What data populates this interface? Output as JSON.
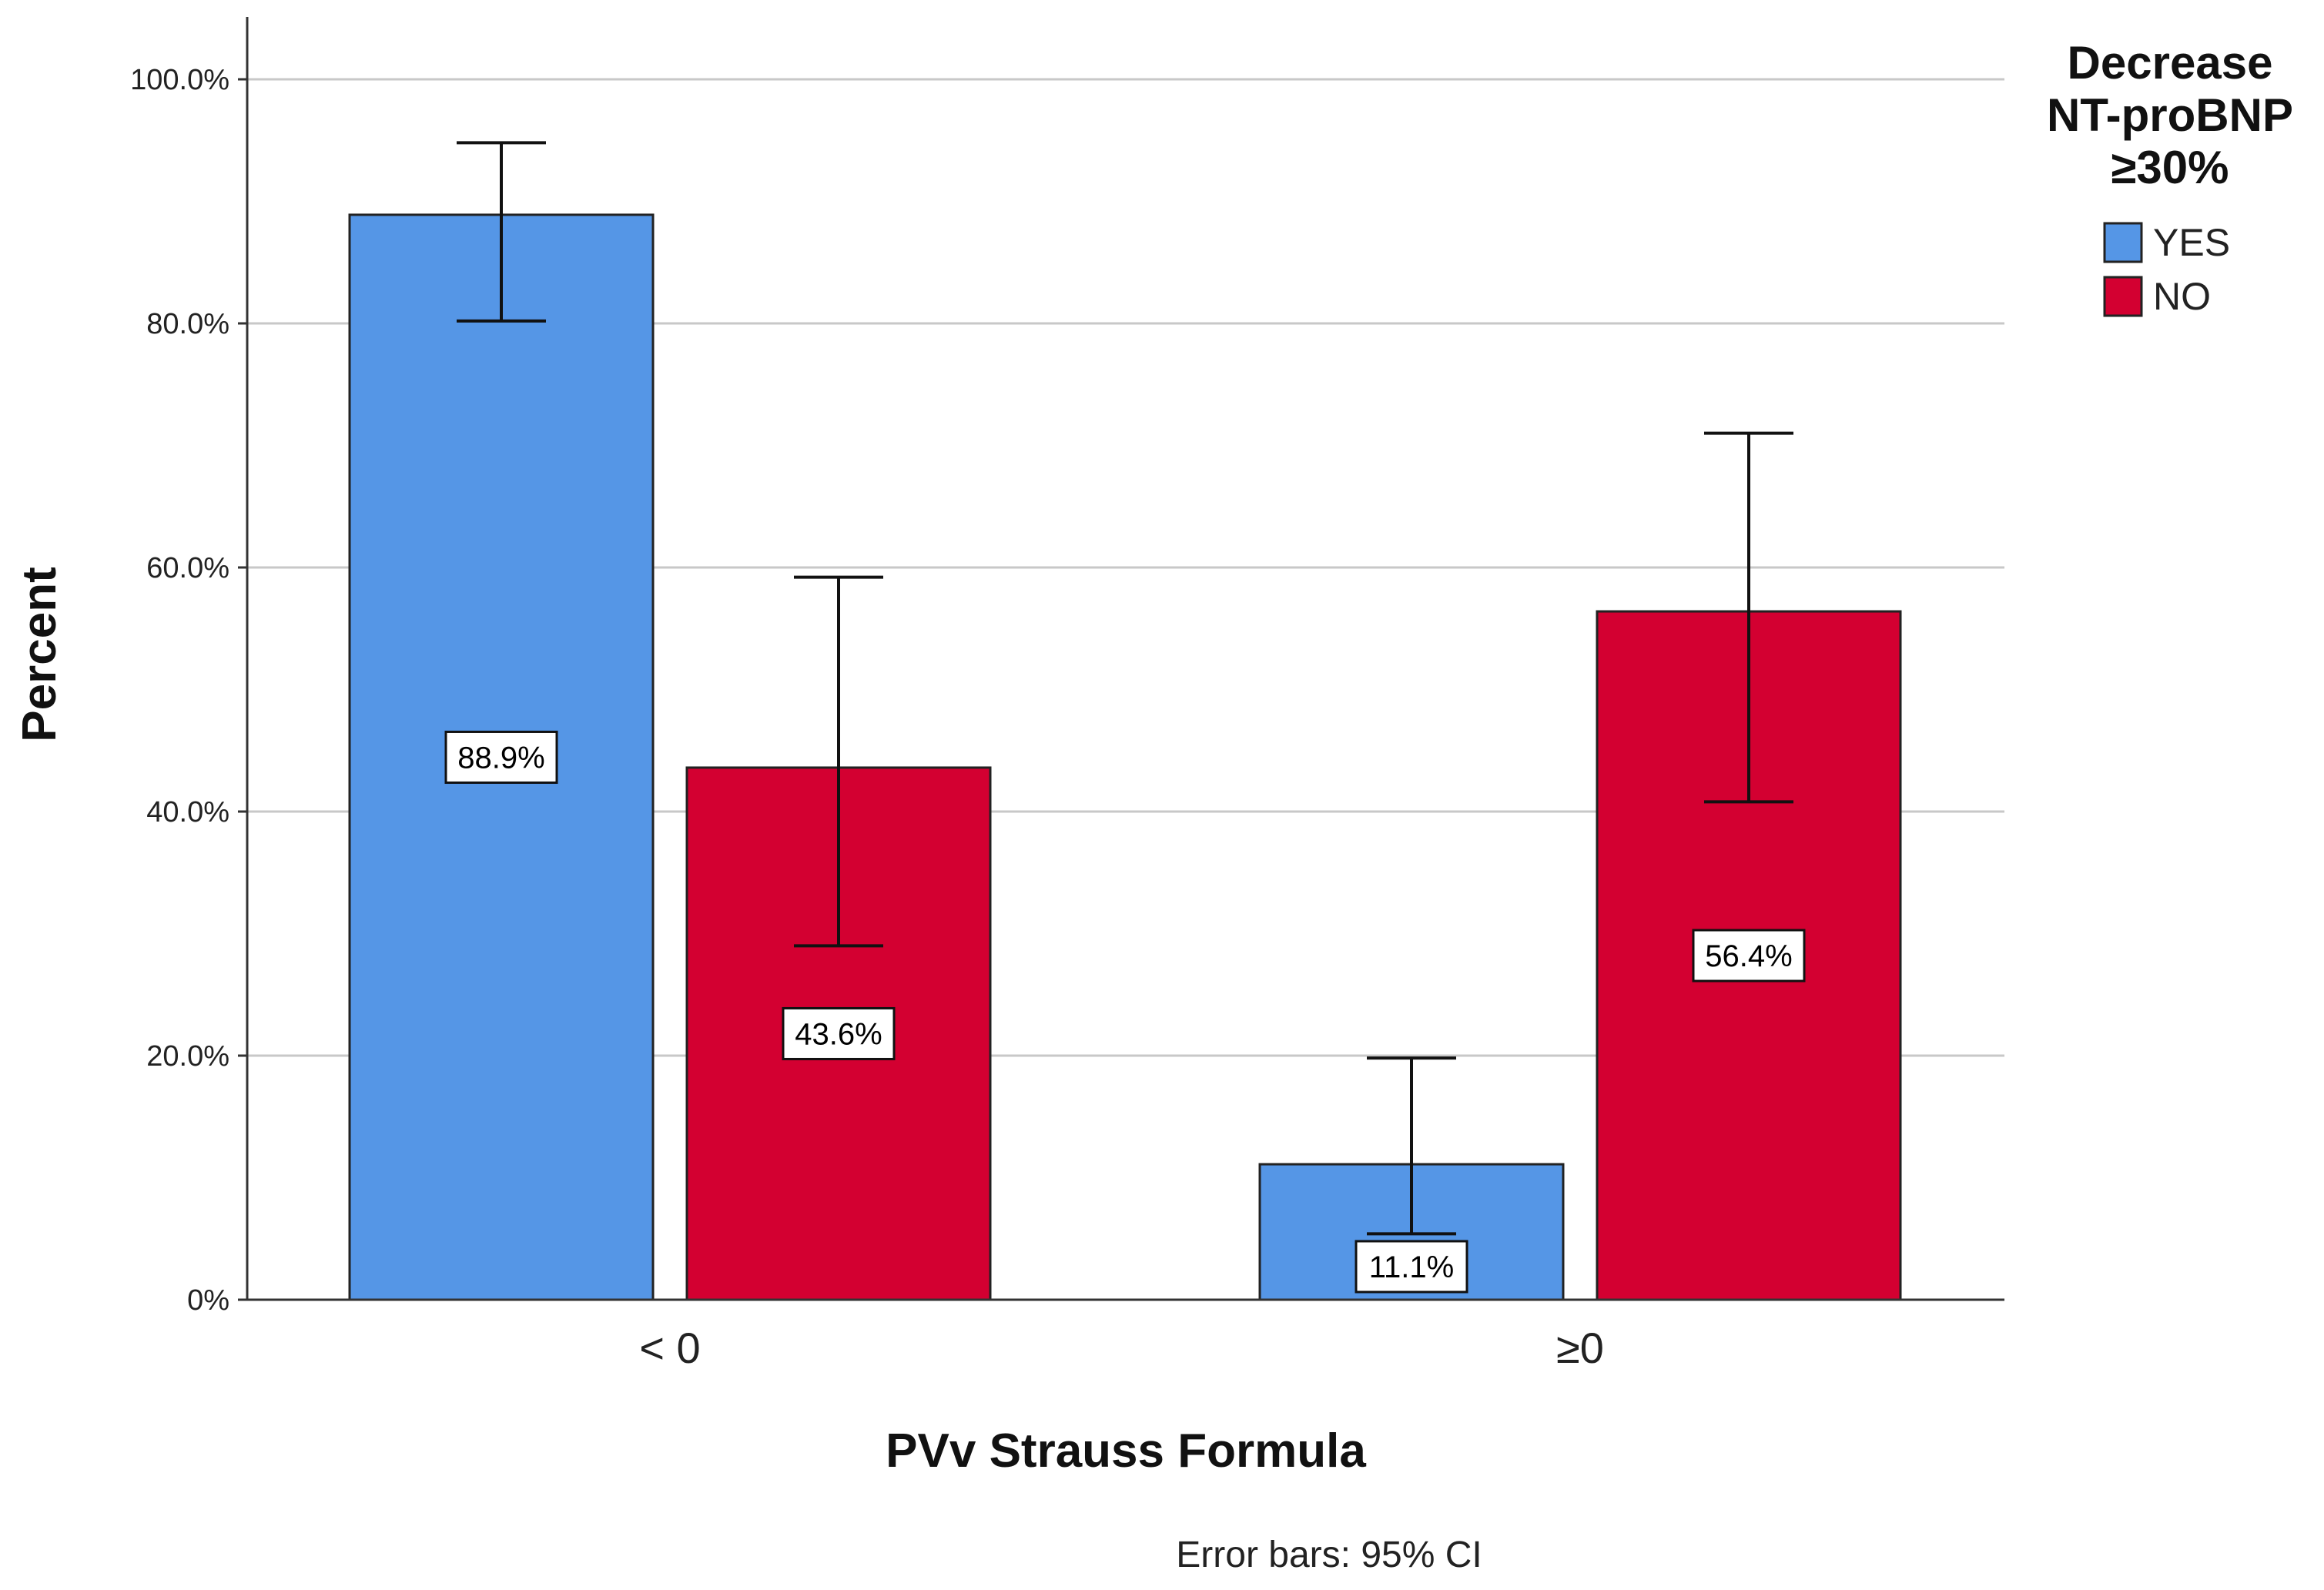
{
  "chart_data": {
    "type": "bar",
    "categories": [
      "< 0",
      "≥0"
    ],
    "series": [
      {
        "name": "YES",
        "color": "#5596e6",
        "values": [
          88.9,
          11.1
        ],
        "labels": [
          "88.9%",
          "11.1%"
        ],
        "ci_low": [
          80.2,
          5.4
        ],
        "ci_high": [
          94.8,
          19.8
        ]
      },
      {
        "name": "NO",
        "color": "#d30031",
        "values": [
          43.6,
          56.4
        ],
        "labels": [
          "43.6%",
          "56.4%"
        ],
        "ci_low": [
          29.0,
          40.8
        ],
        "ci_high": [
          59.2,
          71.0
        ]
      }
    ],
    "ylim": [
      0,
      100
    ],
    "yticks": [
      {
        "value": 0,
        "label": "0%"
      },
      {
        "value": 20,
        "label": "20.0%"
      },
      {
        "value": 40,
        "label": "40.0%"
      },
      {
        "value": 60,
        "label": "60.0%"
      },
      {
        "value": 80,
        "label": "80.0%"
      },
      {
        "value": 100,
        "label": "100.0%"
      }
    ],
    "xlabel": "PVv Strauss Formula",
    "ylabel": "Percent",
    "legend": {
      "title_lines": [
        "Decrease",
        "NT-proBNP",
        "≥30%"
      ],
      "position": "top-right"
    },
    "note": "Error bars: 95% CI",
    "grid": true
  }
}
